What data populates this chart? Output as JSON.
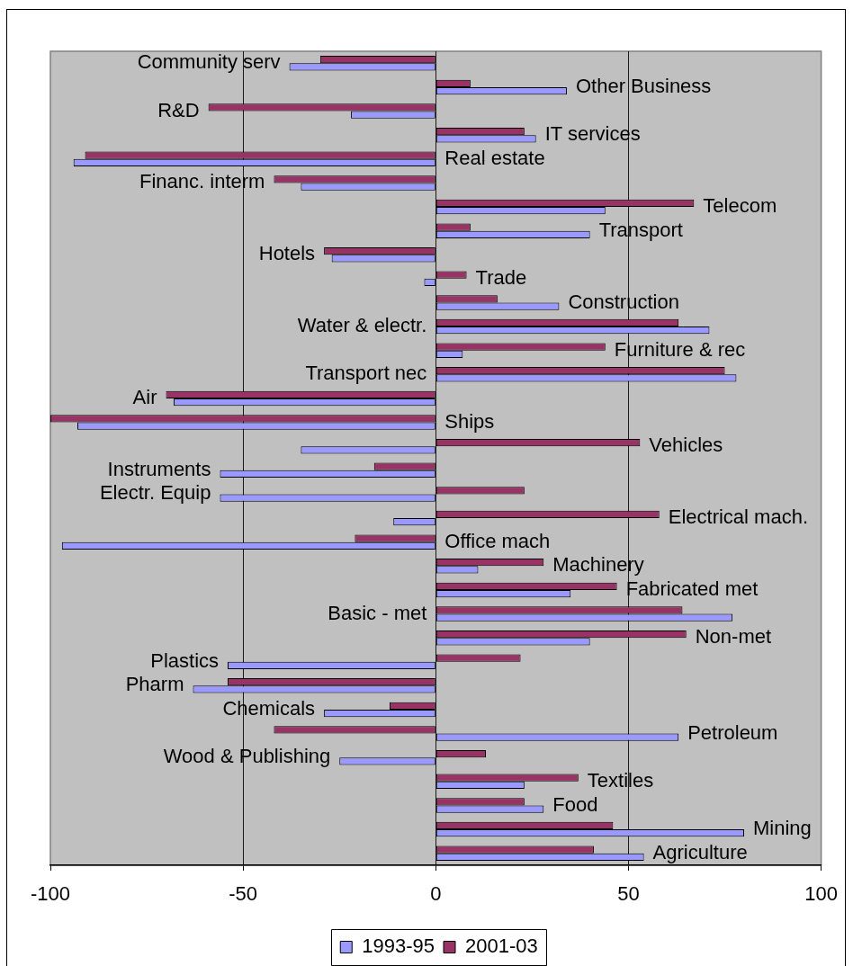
{
  "chart_data": {
    "type": "bar",
    "orientation": "horizontal",
    "categories": [
      "Community serv",
      "Other Business",
      "R&D",
      "IT services",
      "Real estate",
      "Financ. interm",
      "Telecom",
      "Transport",
      "Hotels",
      "Trade",
      "Construction",
      "Water & electr.",
      "Furniture & rec",
      "Transport nec",
      "Air",
      "Ships",
      "Vehicles",
      "Instruments",
      "Electr. Equip",
      "Electrical mach.",
      "Office mach",
      "Machinery",
      "Fabricated met",
      "Basic - met",
      "Non-met",
      "Plastics",
      "Pharm",
      "Chemicals",
      "Petroleum",
      "Wood & Publishing",
      "Textiles",
      "Food",
      "Mining",
      "Agriculture"
    ],
    "series": [
      {
        "name": "1993-95",
        "color": "#9999ff",
        "values": [
          -38,
          34,
          -22,
          26,
          -94,
          -35,
          44,
          40,
          -27,
          -3,
          32,
          71,
          7,
          78,
          -68,
          -93,
          -35,
          -56,
          -56,
          -11,
          -97,
          11,
          35,
          77,
          40,
          -54,
          -63,
          -29,
          63,
          -25,
          23,
          28,
          80,
          54
        ]
      },
      {
        "name": "2001-03",
        "color": "#993366",
        "values": [
          -30,
          9,
          -59,
          23,
          -91,
          -42,
          67,
          9,
          -29,
          8,
          16,
          63,
          44,
          75,
          -70,
          -100,
          53,
          -16,
          23,
          58,
          -21,
          28,
          47,
          64,
          65,
          22,
          -54,
          -12,
          -42,
          13,
          37,
          23,
          46,
          41
        ]
      }
    ],
    "xlim": [
      -100,
      100
    ],
    "xticks": [
      -100,
      -50,
      0,
      50,
      100
    ],
    "grid": "x",
    "legend": "bottom"
  }
}
